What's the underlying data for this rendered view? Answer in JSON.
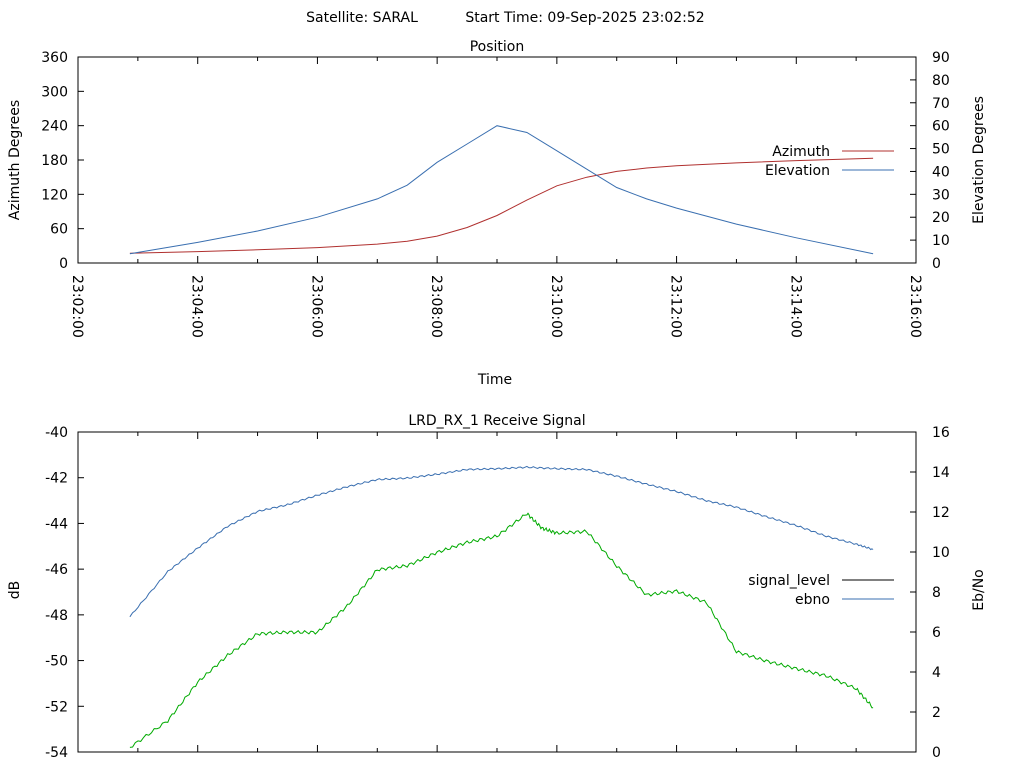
{
  "header": {
    "satellite": "Satellite: SARAL",
    "start_time": "Start Time: 09-Sep-2025 23:02:52"
  },
  "colors": {
    "azimuth": "#b0302f",
    "elevation": "#3a6fb0",
    "signal_level": "#00aa00",
    "ebno": "#3a6fb0"
  },
  "chart_data": [
    {
      "type": "line",
      "title": "Position",
      "xlabel": "Time",
      "ylabel": "Azimuth Degrees",
      "y2label": "Elevation Degrees",
      "xlim": [
        "23:02:00",
        "23:16:00"
      ],
      "x_ticks": [
        "23:02:00",
        "23:04:00",
        "23:06:00",
        "23:08:00",
        "23:10:00",
        "23:12:00",
        "23:14:00",
        "23:16:00"
      ],
      "ylim": [
        0,
        360
      ],
      "y_ticks": [
        "0",
        "60",
        "120",
        "180",
        "240",
        "300",
        "360"
      ],
      "y2lim": [
        0,
        90
      ],
      "y2_ticks": [
        "0",
        "10",
        "20",
        "30",
        "40",
        "50",
        "60",
        "70",
        "80",
        "90"
      ],
      "legend_position": "right",
      "series": [
        {
          "name": "Azimuth",
          "axis": "y",
          "x": [
            "23:02:52",
            "23:04:00",
            "23:05:00",
            "23:06:00",
            "23:07:00",
            "23:07:30",
            "23:08:00",
            "23:08:30",
            "23:09:00",
            "23:09:30",
            "23:10:00",
            "23:10:30",
            "23:11:00",
            "23:11:30",
            "23:12:00",
            "23:13:00",
            "23:14:00",
            "23:15:17"
          ],
          "y": [
            17,
            20,
            23,
            27,
            33,
            38,
            47,
            62,
            83,
            110,
            135,
            150,
            160,
            166,
            170,
            175,
            179,
            183
          ]
        },
        {
          "name": "Elevation",
          "axis": "y2",
          "x": [
            "23:02:52",
            "23:04:00",
            "23:05:00",
            "23:06:00",
            "23:07:00",
            "23:07:30",
            "23:08:00",
            "23:08:30",
            "23:09:00",
            "23:09:30",
            "23:10:00",
            "23:10:30",
            "23:11:00",
            "23:11:30",
            "23:12:00",
            "23:13:00",
            "23:14:00",
            "23:15:17"
          ],
          "y": [
            4,
            9,
            14,
            20,
            28,
            34,
            44,
            52,
            60,
            57,
            49,
            41,
            33,
            28,
            24,
            17,
            11,
            4
          ]
        }
      ]
    },
    {
      "type": "line",
      "title": "LRD_RX_1 Receive Signal",
      "ylabel": "dB",
      "y2label": "Eb/No",
      "xlim": [
        "23:02:00",
        "23:16:00"
      ],
      "ylim": [
        -54,
        -40
      ],
      "y_ticks": [
        "-40",
        "-42",
        "-44",
        "-46",
        "-48",
        "-50",
        "-52",
        "-54"
      ],
      "y2lim": [
        0,
        16
      ],
      "y2_ticks": [
        "0",
        "2",
        "4",
        "6",
        "8",
        "10",
        "12",
        "14",
        "16"
      ],
      "legend_position": "right",
      "series": [
        {
          "name": "signal_level",
          "axis": "y",
          "x": [
            "23:02:52",
            "23:03:30",
            "23:04:00",
            "23:04:30",
            "23:05:00",
            "23:05:30",
            "23:06:00",
            "23:06:30",
            "23:07:00",
            "23:07:30",
            "23:08:00",
            "23:08:30",
            "23:09:00",
            "23:09:30",
            "23:09:45",
            "23:10:00",
            "23:10:30",
            "23:11:00",
            "23:11:30",
            "23:12:00",
            "23:12:30",
            "23:13:00",
            "23:13:30",
            "23:14:00",
            "23:14:30",
            "23:15:00",
            "23:15:17"
          ],
          "y": [
            -53.8,
            -52.6,
            -51.0,
            -49.7,
            -48.9,
            -48.7,
            -48.8,
            -47.6,
            -46.0,
            -45.9,
            -45.2,
            -44.9,
            -44.5,
            -43.6,
            -44.2,
            -44.4,
            -44.4,
            -45.8,
            -47.2,
            -46.9,
            -47.5,
            -49.6,
            -50.0,
            -50.4,
            -50.6,
            -51.3,
            -52.0
          ]
        },
        {
          "name": "ebno",
          "axis": "y2",
          "x": [
            "23:02:52",
            "23:03:30",
            "23:04:00",
            "23:04:30",
            "23:05:00",
            "23:05:30",
            "23:06:00",
            "23:06:30",
            "23:07:00",
            "23:07:30",
            "23:08:00",
            "23:08:30",
            "23:09:00",
            "23:09:30",
            "23:10:00",
            "23:10:30",
            "23:11:00",
            "23:11:30",
            "23:12:00",
            "23:12:30",
            "23:13:00",
            "23:13:30",
            "23:14:00",
            "23:14:30",
            "23:15:00",
            "23:15:17"
          ],
          "y": [
            6.8,
            9.0,
            10.2,
            11.3,
            12.0,
            12.4,
            12.8,
            13.3,
            13.6,
            13.7,
            13.9,
            14.1,
            14.2,
            14.2,
            14.2,
            14.1,
            13.8,
            13.4,
            13.0,
            12.6,
            12.2,
            11.8,
            11.3,
            10.8,
            10.4,
            10.1
          ]
        }
      ]
    }
  ]
}
